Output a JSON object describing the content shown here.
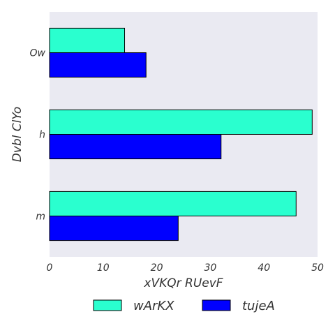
{
  "chart_data": {
    "type": "bar",
    "orientation": "horizontal",
    "categories": [
      "Ow",
      "h",
      "m"
    ],
    "series": [
      {
        "name": "wArKX",
        "values": [
          14,
          49,
          46
        ],
        "color": "#2affcf"
      },
      {
        "name": "tujeA",
        "values": [
          18,
          32,
          24
        ],
        "color": "#0000ff"
      }
    ],
    "xlabel": "xVKQr RUevF",
    "ylabel": "Dvbl ClYo",
    "xlim": [
      0,
      50
    ],
    "xticks": [
      0,
      10,
      20,
      30,
      40,
      50
    ],
    "grid": false,
    "legend_position": "bottom",
    "background_color": "#eaeaf2"
  }
}
